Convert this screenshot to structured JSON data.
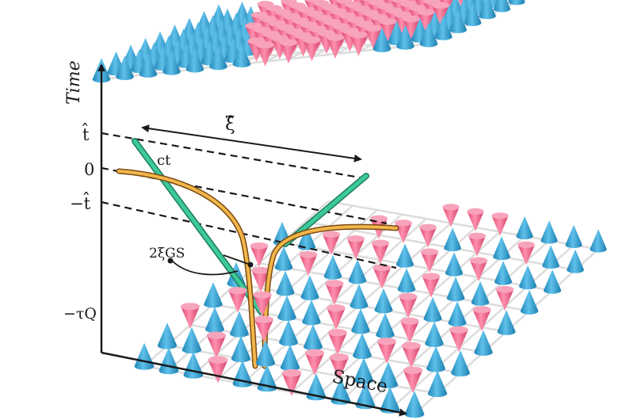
{
  "labels": {
    "time_axis": "Time",
    "space_axis": "Space",
    "t_hat": "t̂",
    "zero": "0",
    "minus_t_hat": "−t̂",
    "minus_tau_q": "−τQ",
    "xi_hat": "ξ̂",
    "ct": "ct",
    "two_xi_gs": "2ξGS"
  },
  "colors": {
    "spin_up": "#3aa6d6",
    "spin_down": "#f0698f",
    "worldline": "#e8a93a",
    "light_cone": "#3ec99a",
    "axis": "#1a1a1a",
    "grid": "#d9d9d9"
  }
}
